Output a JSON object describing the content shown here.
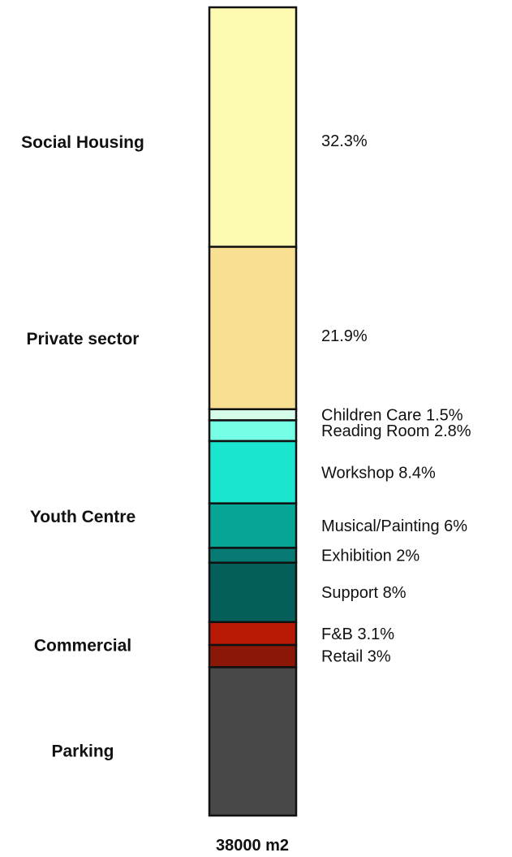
{
  "chart_data": {
    "type": "bar",
    "orientation": "vertical-stacked-single",
    "total_label": "38000 m2",
    "segments": [
      {
        "label": "32.3%",
        "value": 32.3,
        "color": "#fdfab2"
      },
      {
        "label": "21.9%",
        "value": 21.9,
        "color": "#f8df91"
      },
      {
        "label": "Children Care 1.5%",
        "value": 1.5,
        "color": "#d5fbe9"
      },
      {
        "label": "Reading Room 2.8%",
        "value": 2.8,
        "color": "#76fde6"
      },
      {
        "label": "Workshop  8.4%",
        "value": 8.4,
        "color": "#1ae6cf"
      },
      {
        "label": "Musical/Painting 6%",
        "value": 6.0,
        "color": "#06a596"
      },
      {
        "label": "Exhibition 2%",
        "value": 2.0,
        "color": "#067a73"
      },
      {
        "label": "Support 8%",
        "value": 8.0,
        "color": "#045e59"
      },
      {
        "label": "F&B 3.1%",
        "value": 3.1,
        "color": "#b71904"
      },
      {
        "label": "Retail 3%",
        "value": 3.0,
        "color": "#8b1806"
      },
      {
        "label": "",
        "value": 20.0,
        "color": "#474847"
      }
    ],
    "groups": [
      {
        "label": "Social Housing",
        "segments": [
          0
        ]
      },
      {
        "label": "Private sector",
        "segments": [
          1
        ]
      },
      {
        "label": "Youth Centre",
        "segments": [
          2,
          3,
          4,
          5,
          6,
          7
        ]
      },
      {
        "label": "Commercial",
        "segments": [
          8,
          9
        ]
      },
      {
        "label": "Parking",
        "segments": [
          10
        ]
      }
    ]
  }
}
